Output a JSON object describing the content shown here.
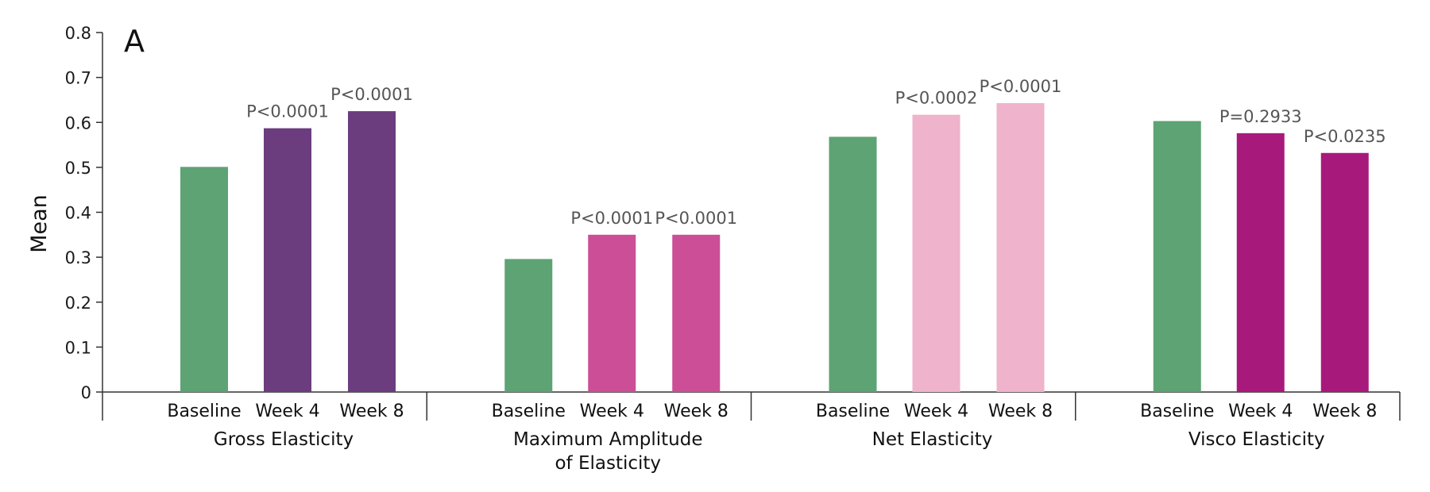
{
  "chart_data": {
    "type": "bar",
    "panel_label": "A",
    "ylabel": "Mean",
    "ylim": [
      0,
      0.8
    ],
    "yticks": [
      "0",
      "0.1",
      "0.2",
      "0.3",
      "0.4",
      "0.5",
      "0.6",
      "0.7",
      "0.8"
    ],
    "grid": false,
    "categories": [
      "Baseline",
      "Week 4",
      "Week 8"
    ],
    "groups": [
      {
        "name_lines": [
          "Gross Elasticity"
        ],
        "values": [
          0.501,
          0.587,
          0.625
        ],
        "pvalues": [
          "",
          "P<0.0001",
          "P<0.0001"
        ],
        "colors": [
          "#5ea373",
          "#6b3d7f",
          "#6b3d7f"
        ]
      },
      {
        "name_lines": [
          "Maximum Amplitude",
          "of Elasticity"
        ],
        "values": [
          0.296,
          0.35,
          0.35
        ],
        "pvalues": [
          "",
          "P<0.0001",
          "P<0.0001"
        ],
        "colors": [
          "#5ea373",
          "#cc4e96",
          "#cc4e96"
        ]
      },
      {
        "name_lines": [
          "Net Elasticity"
        ],
        "values": [
          0.568,
          0.617,
          0.643
        ],
        "pvalues": [
          "",
          "P<0.0002",
          "P<0.0001"
        ],
        "colors": [
          "#5ea373",
          "#efb3cb",
          "#efb3cb"
        ]
      },
      {
        "name_lines": [
          "Visco Elasticity"
        ],
        "values": [
          0.603,
          0.576,
          0.532
        ],
        "pvalues": [
          "",
          "P=0.2933",
          "P<0.0235"
        ],
        "colors": [
          "#5ea373",
          "#a8197c",
          "#a8197c"
        ]
      }
    ]
  }
}
